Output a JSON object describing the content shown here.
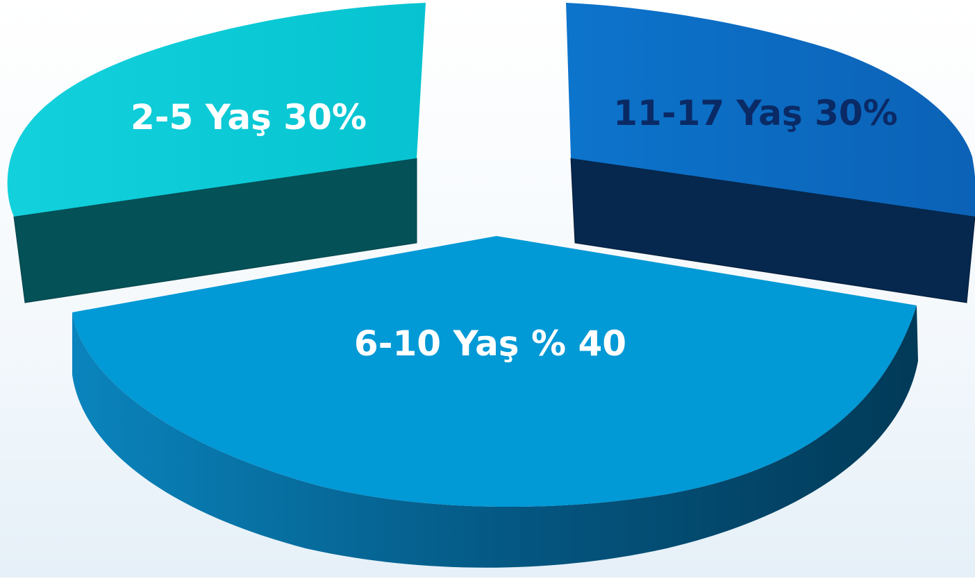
{
  "chart_data": {
    "type": "pie",
    "style": "3d-exploded",
    "title": "",
    "legend": "none",
    "slices": [
      {
        "label": "2-5 Yaş  30%",
        "value": 30,
        "top_color": "#0f6bc1",
        "side_color": "#06284e",
        "label_color": "#ffffff"
      },
      {
        "label": "6-10 Yaş % 40",
        "value": 40,
        "top_color": "#0195d3",
        "side_color": "#03466a",
        "label_color": "#ffffff"
      },
      {
        "label": "11-17 Yaş 30%",
        "value": 30,
        "top_color": "#0bcbd7",
        "side_color": "#045157",
        "label_color": "#0a2a66"
      }
    ]
  }
}
